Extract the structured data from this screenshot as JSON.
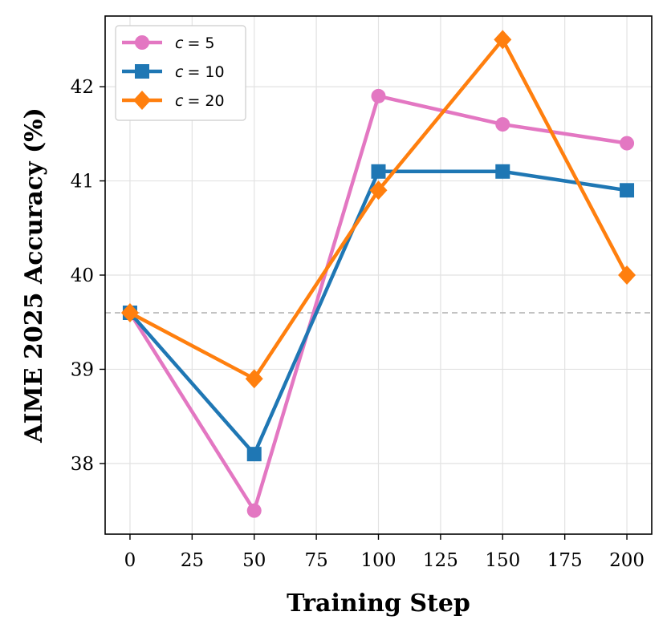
{
  "chart_data": {
    "type": "line",
    "xlabel": "Training Step",
    "ylabel": "AIME 2025 Accuracy (%)",
    "x": [
      0,
      50,
      100,
      150,
      200
    ],
    "xlim": [
      -10,
      210
    ],
    "ylim": [
      37.25,
      42.75
    ],
    "xticks": [
      0,
      25,
      50,
      75,
      100,
      125,
      150,
      175,
      200
    ],
    "yticks": [
      38,
      39,
      40,
      41,
      42
    ],
    "grid": true,
    "legend_position": "top-left",
    "baseline": {
      "y": 39.6,
      "style": "dashed",
      "color": "#bbbbbb"
    },
    "series": [
      {
        "name": "c = 5",
        "name_var": "c",
        "name_val": "= 5",
        "color": "#e377c2",
        "marker": "circle",
        "values": [
          39.6,
          37.5,
          41.9,
          41.6,
          41.4
        ]
      },
      {
        "name": "c = 10",
        "name_var": "c",
        "name_val": "= 10",
        "color": "#1f77b4",
        "marker": "square",
        "values": [
          39.6,
          38.1,
          41.1,
          41.1,
          40.9
        ]
      },
      {
        "name": "c = 20",
        "name_var": "c",
        "name_val": "= 20",
        "color": "#ff7f0e",
        "marker": "diamond",
        "values": [
          39.6,
          38.9,
          40.9,
          42.5,
          40.0
        ]
      }
    ]
  }
}
